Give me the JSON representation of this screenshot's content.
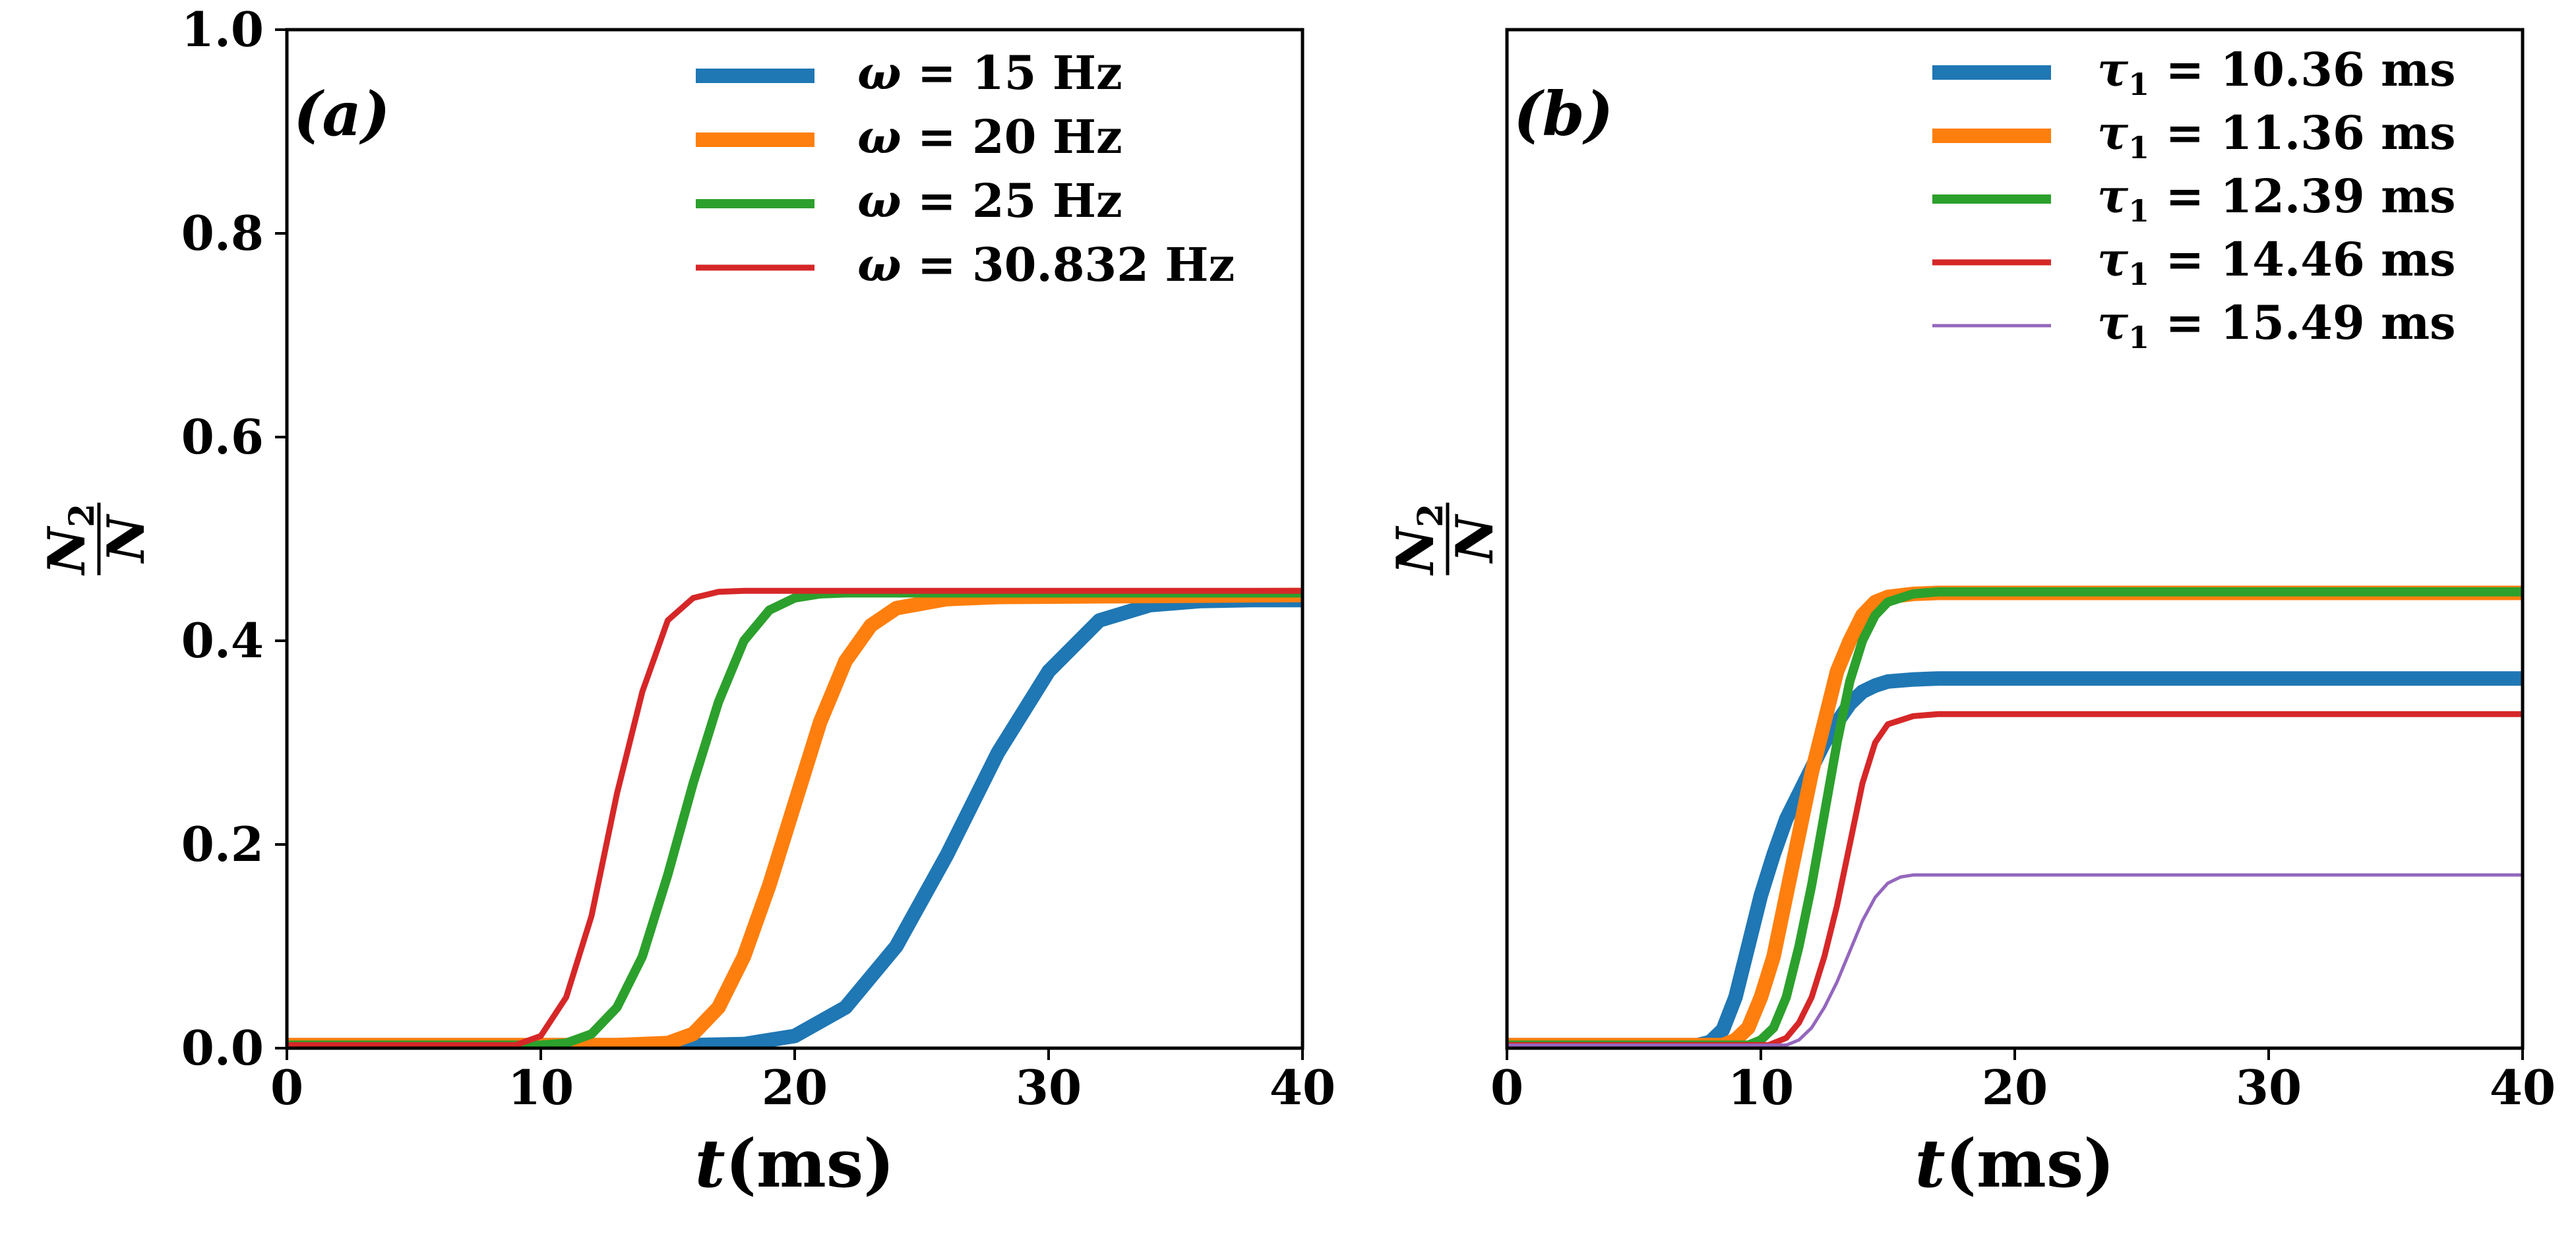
{
  "chart_data": [
    {
      "type": "line",
      "panel_label": "(a)",
      "xlabel_var": "t",
      "xlabel_unit": "(ms)",
      "ylabel_num": "N",
      "ylabel_num_sub": "2",
      "ylabel_den": "N",
      "xlim": [
        0,
        40
      ],
      "ylim": [
        0,
        1.0
      ],
      "xticks": [
        "0",
        "10",
        "20",
        "30",
        "40"
      ],
      "yticks": [
        "0.0",
        "0.2",
        "0.4",
        "0.6",
        "0.8",
        "1.0"
      ],
      "grid": false,
      "legend_position": "top-right",
      "series": [
        {
          "legend_sym": "ω",
          "legend_val": "= 15 Hz",
          "color": "#1f77b4",
          "width": "thick",
          "x": [
            0,
            16,
            18,
            20,
            22,
            24,
            26,
            28,
            30,
            32,
            34,
            36,
            38,
            40
          ],
          "y": [
            0.003,
            0.003,
            0.004,
            0.012,
            0.04,
            0.1,
            0.19,
            0.29,
            0.37,
            0.42,
            0.435,
            0.439,
            0.44,
            0.44
          ]
        },
        {
          "legend_sym": "ω",
          "legend_val": "= 20 Hz",
          "color": "#ff7f0e",
          "width": "thick",
          "x": [
            0,
            13,
            15,
            16,
            17,
            18,
            19,
            20,
            21,
            22,
            23,
            24,
            26,
            28,
            40
          ],
          "y": [
            0.003,
            0.003,
            0.005,
            0.014,
            0.04,
            0.09,
            0.16,
            0.24,
            0.32,
            0.38,
            0.415,
            0.432,
            0.441,
            0.443,
            0.445
          ]
        },
        {
          "legend_sym": "ω",
          "legend_val": "= 25 Hz",
          "color": "#2ca02c",
          "width": "medium",
          "x": [
            0,
            10,
            11,
            12,
            13,
            14,
            15,
            16,
            17,
            18,
            19,
            20,
            21,
            22,
            40
          ],
          "y": [
            0.003,
            0.003,
            0.005,
            0.014,
            0.04,
            0.09,
            0.17,
            0.26,
            0.34,
            0.4,
            0.43,
            0.442,
            0.446,
            0.447,
            0.447
          ]
        },
        {
          "legend_sym": "ω",
          "legend_val": "= 30.832 Hz",
          "color": "#d62728",
          "width": "thin",
          "x": [
            0,
            9,
            10,
            11,
            12,
            13,
            14,
            15,
            16,
            17,
            18,
            40
          ],
          "y": [
            0.003,
            0.003,
            0.012,
            0.05,
            0.13,
            0.25,
            0.35,
            0.42,
            0.442,
            0.448,
            0.449,
            0.449
          ]
        }
      ]
    },
    {
      "type": "line",
      "panel_label": "(b)",
      "xlabel_var": "t",
      "xlabel_unit": "(ms)",
      "ylabel_num": "N",
      "ylabel_num_sub": "2",
      "ylabel_den": "N",
      "xlim": [
        0,
        40
      ],
      "ylim": [
        0,
        1.0
      ],
      "xticks": [
        "0",
        "10",
        "20",
        "30",
        "40"
      ],
      "yticks": [],
      "grid": false,
      "legend_position": "top-right",
      "series": [
        {
          "legend_sym": "τ",
          "legend_sub": "1",
          "legend_val": "= 10.36 ms",
          "color": "#1f77b4",
          "width": "thick",
          "x": [
            0,
            7.5,
            8,
            8.5,
            9,
            9.5,
            10,
            10.5,
            11,
            11.5,
            12,
            12.5,
            13,
            13.5,
            14,
            14.5,
            15,
            16,
            17,
            40
          ],
          "y": [
            0.003,
            0.003,
            0.006,
            0.018,
            0.05,
            0.1,
            0.15,
            0.19,
            0.225,
            0.25,
            0.275,
            0.3,
            0.32,
            0.338,
            0.35,
            0.356,
            0.36,
            0.362,
            0.363,
            0.363
          ]
        },
        {
          "legend_sym": "τ",
          "legend_sub": "1",
          "legend_val": "= 11.36 ms",
          "color": "#ff7f0e",
          "width": "thick",
          "x": [
            0,
            8.5,
            9,
            9.5,
            10,
            10.5,
            11,
            11.5,
            12,
            12.5,
            13,
            13.5,
            14,
            14.5,
            15,
            16,
            17,
            40
          ],
          "y": [
            0.003,
            0.003,
            0.008,
            0.02,
            0.05,
            0.09,
            0.15,
            0.21,
            0.27,
            0.32,
            0.37,
            0.4,
            0.425,
            0.438,
            0.443,
            0.446,
            0.447,
            0.447
          ]
        },
        {
          "legend_sym": "τ",
          "legend_sub": "1",
          "legend_val": "= 12.39 ms",
          "color": "#2ca02c",
          "width": "medium",
          "x": [
            0,
            9.5,
            10,
            10.5,
            11,
            11.5,
            12,
            12.5,
            13,
            13.5,
            14,
            14.5,
            15,
            16,
            17,
            40
          ],
          "y": [
            0.003,
            0.003,
            0.008,
            0.02,
            0.05,
            0.1,
            0.16,
            0.23,
            0.3,
            0.36,
            0.4,
            0.425,
            0.438,
            0.446,
            0.448,
            0.448
          ]
        },
        {
          "legend_sym": "τ",
          "legend_sub": "1",
          "legend_val": "= 14.46 ms",
          "color": "#d62728",
          "width": "thin",
          "x": [
            0,
            10.3,
            11,
            11.5,
            12,
            12.5,
            13,
            13.5,
            14,
            14.5,
            15,
            16,
            17,
            40
          ],
          "y": [
            0.003,
            0.003,
            0.01,
            0.025,
            0.05,
            0.09,
            0.14,
            0.2,
            0.26,
            0.3,
            0.318,
            0.326,
            0.328,
            0.328
          ]
        },
        {
          "legend_sym": "τ",
          "legend_sub": "1",
          "legend_val": "= 15.49 ms",
          "color": "#9467bd",
          "width": "hair",
          "x": [
            0,
            11,
            11.5,
            12,
            12.5,
            13,
            13.5,
            14,
            14.5,
            15,
            15.5,
            16,
            17,
            40
          ],
          "y": [
            0.003,
            0.003,
            0.008,
            0.02,
            0.04,
            0.065,
            0.095,
            0.125,
            0.148,
            0.162,
            0.168,
            0.17,
            0.17,
            0.17
          ]
        }
      ]
    }
  ]
}
